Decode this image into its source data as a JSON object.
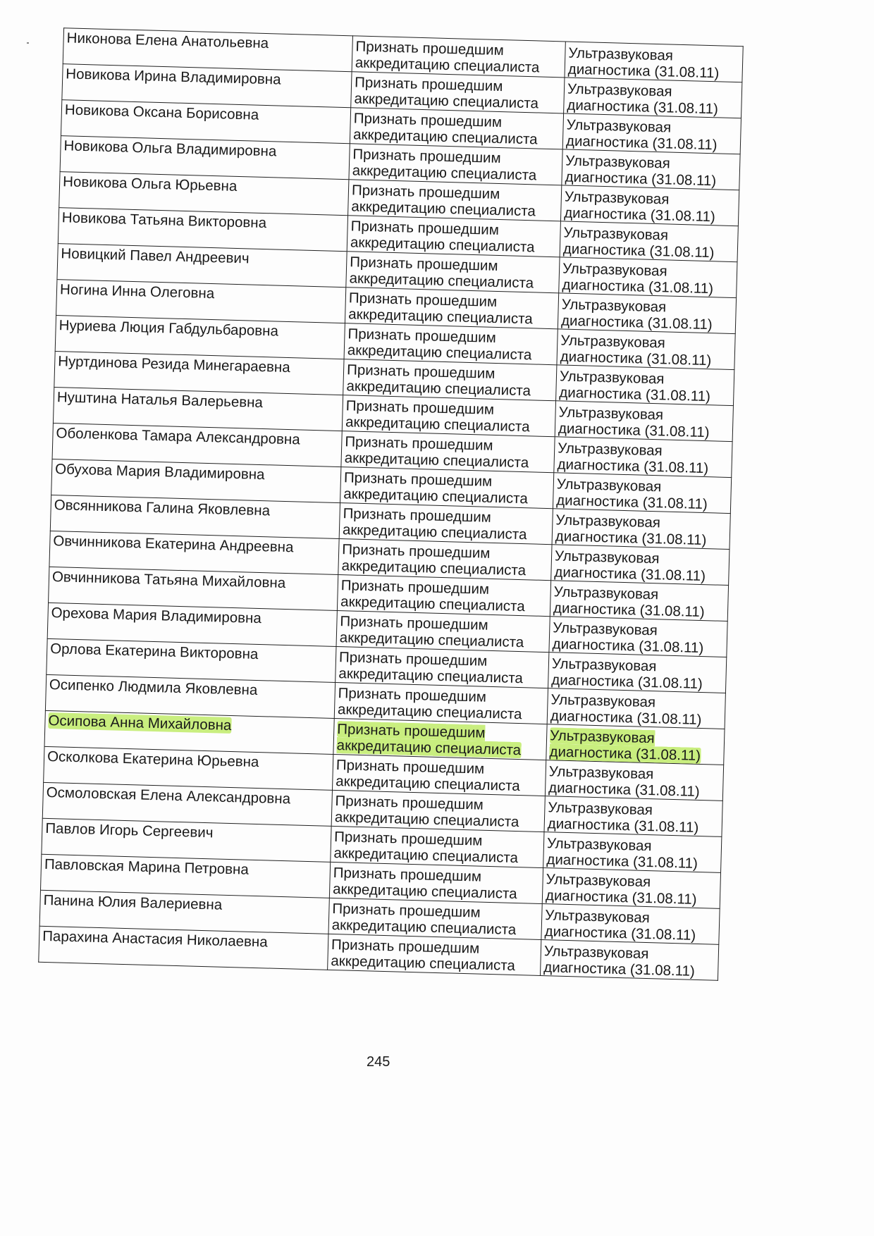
{
  "table": {
    "rows": [
      {
        "name": "Никонова Елена Анатольевна",
        "decision": "Признать прошедшим аккредитацию специалиста",
        "specialty": "Ультразвуковая диагностика (31.08.11)"
      },
      {
        "name": "Новикова Ирина Владимировна",
        "decision": "Признать прошедшим аккредитацию специалиста",
        "specialty": "Ультразвуковая диагностика (31.08.11)"
      },
      {
        "name": "Новикова Оксана Борисовна",
        "decision": "Признать прошедшим аккредитацию специалиста",
        "specialty": "Ультразвуковая диагностика (31.08.11)"
      },
      {
        "name": "Новикова Ольга Владимировна",
        "decision": "Признать прошедшим аккредитацию специалиста",
        "specialty": "Ультразвуковая диагностика (31.08.11)"
      },
      {
        "name": "Новикова Ольга Юрьевна",
        "decision": "Признать прошедшим аккредитацию специалиста",
        "specialty": "Ультразвуковая диагностика (31.08.11)"
      },
      {
        "name": "Новикова Татьяна Викторовна",
        "decision": "Признать прошедшим аккредитацию специалиста",
        "specialty": "Ультразвуковая диагностика (31.08.11)"
      },
      {
        "name": "Новицкий Павел Андреевич",
        "decision": "Признать прошедшим аккредитацию специалиста",
        "specialty": "Ультразвуковая диагностика (31.08.11)"
      },
      {
        "name": "Ногина Инна Олеговна",
        "decision": "Признать прошедшим аккредитацию специалиста",
        "specialty": "Ультразвуковая диагностика (31.08.11)"
      },
      {
        "name": "Нуриева Люция Габдульбаровна",
        "decision": "Признать прошедшим аккредитацию специалиста",
        "specialty": "Ультразвуковая диагностика (31.08.11)"
      },
      {
        "name": "Нуртдинова Резида Минегараевна",
        "decision": "Признать прошедшим аккредитацию специалиста",
        "specialty": "Ультразвуковая диагностика (31.08.11)"
      },
      {
        "name": "Нуштина Наталья Валерьевна",
        "decision": "Признать прошедшим аккредитацию специалиста",
        "specialty": "Ультразвуковая диагностика (31.08.11)"
      },
      {
        "name": "Оболенкова Тамара Александровна",
        "decision": "Признать прошедшим аккредитацию специалиста",
        "specialty": "Ультразвуковая диагностика (31.08.11)"
      },
      {
        "name": "Обухова Мария Владимировна",
        "decision": "Признать прошедшим аккредитацию специалиста",
        "specialty": "Ультразвуковая диагностика (31.08.11)"
      },
      {
        "name": "Овсянникова Галина Яковлевна",
        "decision": "Признать прошедшим аккредитацию специалиста",
        "specialty": "Ультразвуковая диагностика (31.08.11)"
      },
      {
        "name": "Овчинникова Екатерина Андреевна",
        "decision": "Признать прошедшим аккредитацию специалиста",
        "specialty": "Ультразвуковая диагностика (31.08.11)"
      },
      {
        "name": "Овчинникова Татьяна Михайловна",
        "decision": "Признать прошедшим аккредитацию специалиста",
        "specialty": "Ультразвуковая диагностика (31.08.11)"
      },
      {
        "name": "Орехова Мария Владимировна",
        "decision": "Признать прошедшим аккредитацию специалиста",
        "specialty": "Ультразвуковая диагностика (31.08.11)"
      },
      {
        "name": "Орлова Екатерина Викторовна",
        "decision": "Признать прошедшим аккредитацию специалиста",
        "specialty": "Ультразвуковая диагностика (31.08.11)"
      },
      {
        "name": "Осипенко Людмила Яковлевна",
        "decision": "Признать прошедшим аккредитацию специалиста",
        "specialty": "Ультразвуковая диагностика (31.08.11)"
      },
      {
        "name": "Осипова Анна Михайловна",
        "decision": "Признать прошедшим аккредитацию специалиста",
        "specialty": "Ультразвуковая диагностика (31.08.11)",
        "highlighted": true
      },
      {
        "name": "Осколкова Екатерина Юрьевна",
        "decision": "Признать прошедшим аккредитацию специалиста",
        "specialty": "Ультразвуковая диагностика (31.08.11)"
      },
      {
        "name": "Осмоловская Елена Александровна",
        "decision": "Признать прошедшим аккредитацию специалиста",
        "specialty": "Ультразвуковая диагностика (31.08.11)"
      },
      {
        "name": "Павлов Игорь Сергеевич",
        "decision": "Признать прошедшим аккредитацию специалиста",
        "specialty": "Ультразвуковая диагностика (31.08.11)"
      },
      {
        "name": "Павловская Марина Петровна",
        "decision": "Признать прошедшим аккредитацию специалиста",
        "specialty": "Ультразвуковая диагностика (31.08.11)"
      },
      {
        "name": "Панина Юлия Валериевна",
        "decision": "Признать прошедшим аккредитацию специалиста",
        "specialty": "Ультразвуковая диагностика (31.08.11)"
      },
      {
        "name": "Парахина Анастасия Николаевна",
        "decision": "Признать прошедшим аккредитацию специалиста",
        "specialty": "Ультразвуковая диагностика (31.08.11)"
      }
    ]
  },
  "highlight_color": "#c9ee7f",
  "page_number": "245"
}
